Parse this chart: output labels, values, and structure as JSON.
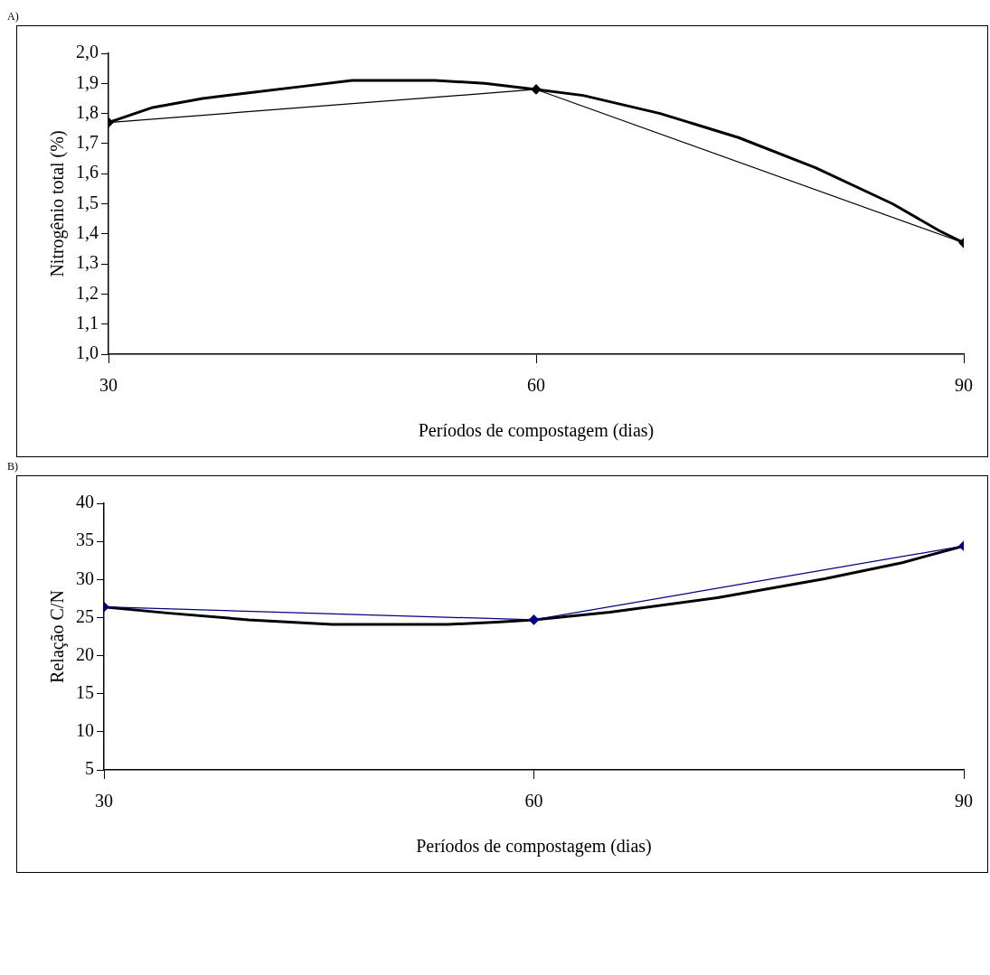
{
  "chart_data": [
    {
      "type": "line",
      "title": "A)",
      "xlabel": "Períodos de compostagem (dias)",
      "ylabel": "Nitrogênio total (%)",
      "xlim": [
        30,
        90
      ],
      "xticks": [
        30,
        60,
        90
      ],
      "ylim": [
        1.0,
        2.0
      ],
      "yticks": [
        {
          "value": 1.0,
          "label": "1,0"
        },
        {
          "value": 1.1,
          "label": "1,1"
        },
        {
          "value": 1.2,
          "label": "1,2"
        },
        {
          "value": 1.3,
          "label": "1,3"
        },
        {
          "value": 1.4,
          "label": "1,4"
        },
        {
          "value": 1.5,
          "label": "1,5"
        },
        {
          "value": 1.6,
          "label": "1,6"
        },
        {
          "value": 1.7,
          "label": "1,7"
        },
        {
          "value": 1.8,
          "label": "1,8"
        },
        {
          "value": 1.9,
          "label": "1,9"
        },
        {
          "value": 2.0,
          "label": "2,0"
        }
      ],
      "grid": false,
      "legend": false,
      "marker": "diamond",
      "series": [
        {
          "color": "#000000",
          "x": [
            30,
            60,
            90
          ],
          "values": [
            1.77,
            1.88,
            1.37
          ]
        },
        {
          "color": "#000000",
          "marker": "none",
          "x": [
            30,
            33.1,
            36.6,
            40.1,
            43.6,
            47.1,
            52.9,
            56.4,
            60,
            63.3,
            68.7,
            74.2,
            79.6,
            85.0,
            88.3,
            90
          ],
          "values": [
            1.77,
            1.82,
            1.85,
            1.87,
            1.89,
            1.91,
            1.91,
            1.9,
            1.88,
            1.86,
            1.8,
            1.72,
            1.62,
            1.5,
            1.41,
            1.37
          ]
        }
      ]
    },
    {
      "type": "line",
      "title": "B)",
      "xlabel": "Períodos de compostagem (dias)",
      "ylabel": "Relação C/N",
      "xlim": [
        30,
        90
      ],
      "xticks": [
        30,
        60,
        90
      ],
      "ylim": [
        5,
        40
      ],
      "yticks": [
        5,
        10,
        15,
        20,
        25,
        30,
        35,
        40
      ],
      "grid": false,
      "legend": false,
      "marker": "diamond",
      "series": [
        {
          "color": "#000080",
          "x": [
            30,
            60,
            90
          ],
          "values": [
            26.4,
            24.7,
            34.4
          ]
        },
        {
          "color": "#000000",
          "marker": "none",
          "x": [
            30,
            34.4,
            40.1,
            45.9,
            54.0,
            57.4,
            60,
            65.3,
            72.8,
            80.3,
            85.7,
            90
          ],
          "values": [
            26.4,
            25.6,
            24.7,
            24.1,
            24.1,
            24.4,
            24.7,
            25.7,
            27.6,
            30.1,
            32.2,
            34.4
          ]
        }
      ]
    }
  ]
}
